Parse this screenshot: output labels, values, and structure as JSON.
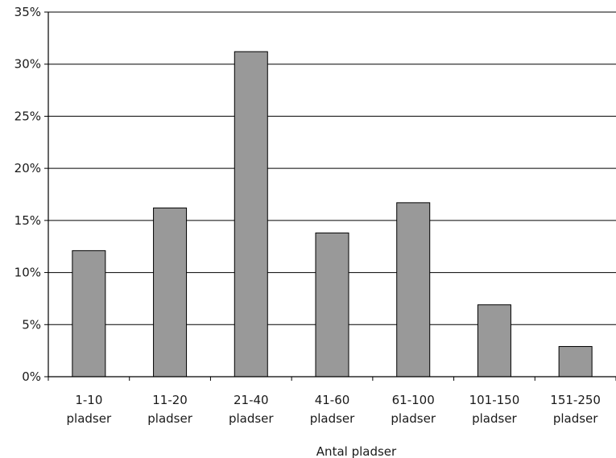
{
  "chart_data": {
    "type": "bar",
    "categories": [
      [
        "1-10",
        "pladser"
      ],
      [
        "11-20",
        "pladser"
      ],
      [
        "21-40",
        "pladser"
      ],
      [
        "41-60",
        "pladser"
      ],
      [
        "61-100",
        "pladser"
      ],
      [
        "101-150",
        "pladser"
      ],
      [
        "151-250",
        "pladser"
      ]
    ],
    "values": [
      12.1,
      16.2,
      31.2,
      13.8,
      16.7,
      6.9,
      2.9
    ],
    "value_unit": "%",
    "ylim": [
      0,
      35
    ],
    "yticks": [
      "0%",
      "5%",
      "10%",
      "15%",
      "20%",
      "25%",
      "30%",
      "35%"
    ],
    "xlabel": "Antal pladser",
    "ylabel": "",
    "grid": true,
    "bar_color": "#999999",
    "bar_edge_color": "#000000",
    "gridline_color": "#000000"
  }
}
